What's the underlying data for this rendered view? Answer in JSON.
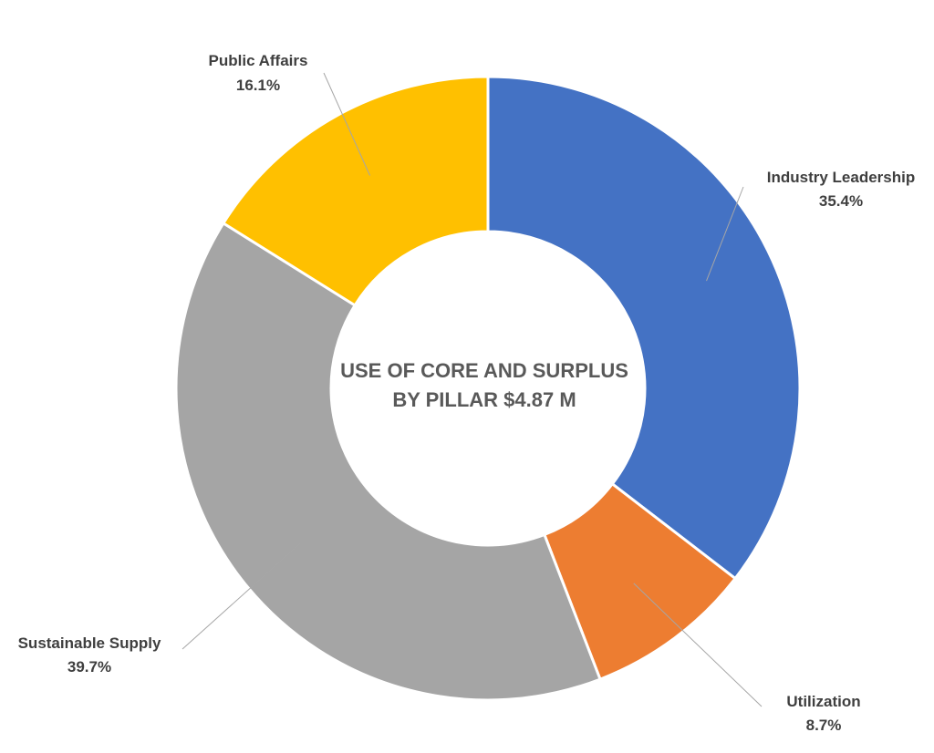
{
  "chart_data": {
    "type": "pie",
    "variant": "donut",
    "title_lines": [
      "USE OF CORE AND SURPLUS",
      "BY PILLAR $4.87 M"
    ],
    "categories": [
      "Industry Leadership",
      "Utilization",
      "Sustainable Supply",
      "Public Affairs"
    ],
    "values": [
      35.4,
      8.7,
      39.7,
      16.1
    ],
    "value_labels": [
      "35.4%",
      "8.7%",
      "39.7%",
      "16.1%"
    ],
    "colors": [
      "#4472C4",
      "#ED7D31",
      "#A5A5A5",
      "#FFC000"
    ],
    "legend": "none",
    "data_labels": "outside with leader lines"
  }
}
